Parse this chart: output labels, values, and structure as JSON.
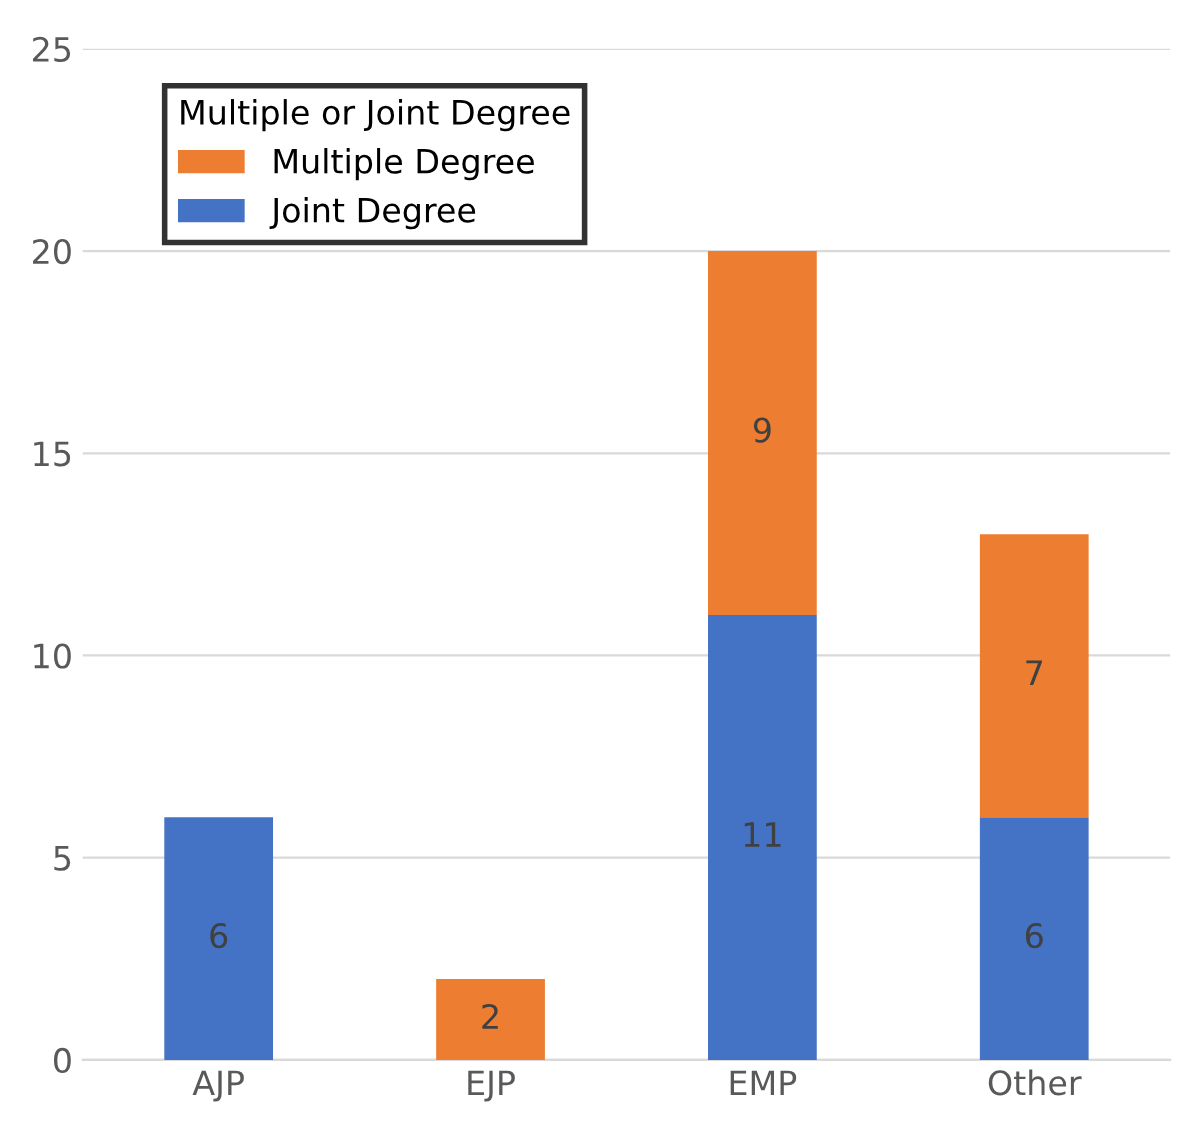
{
  "chart_data": {
    "type": "bar",
    "stacked": true,
    "categories": [
      "AJP",
      "EJP",
      "EMP",
      "Other"
    ],
    "series": [
      {
        "name": "Joint Degree",
        "color": "#4472c4",
        "values": [
          6,
          null,
          11,
          6
        ]
      },
      {
        "name": "Multiple Degree",
        "color": "#ed7d31",
        "values": [
          null,
          2,
          9,
          7
        ]
      }
    ],
    "ylim": [
      0,
      25
    ],
    "yticks": [
      0,
      5,
      10,
      15,
      20,
      25
    ],
    "grid": "y",
    "legend": "top left",
    "legend_title": "Multiple or Joint Degree",
    "data_labels": true
  }
}
